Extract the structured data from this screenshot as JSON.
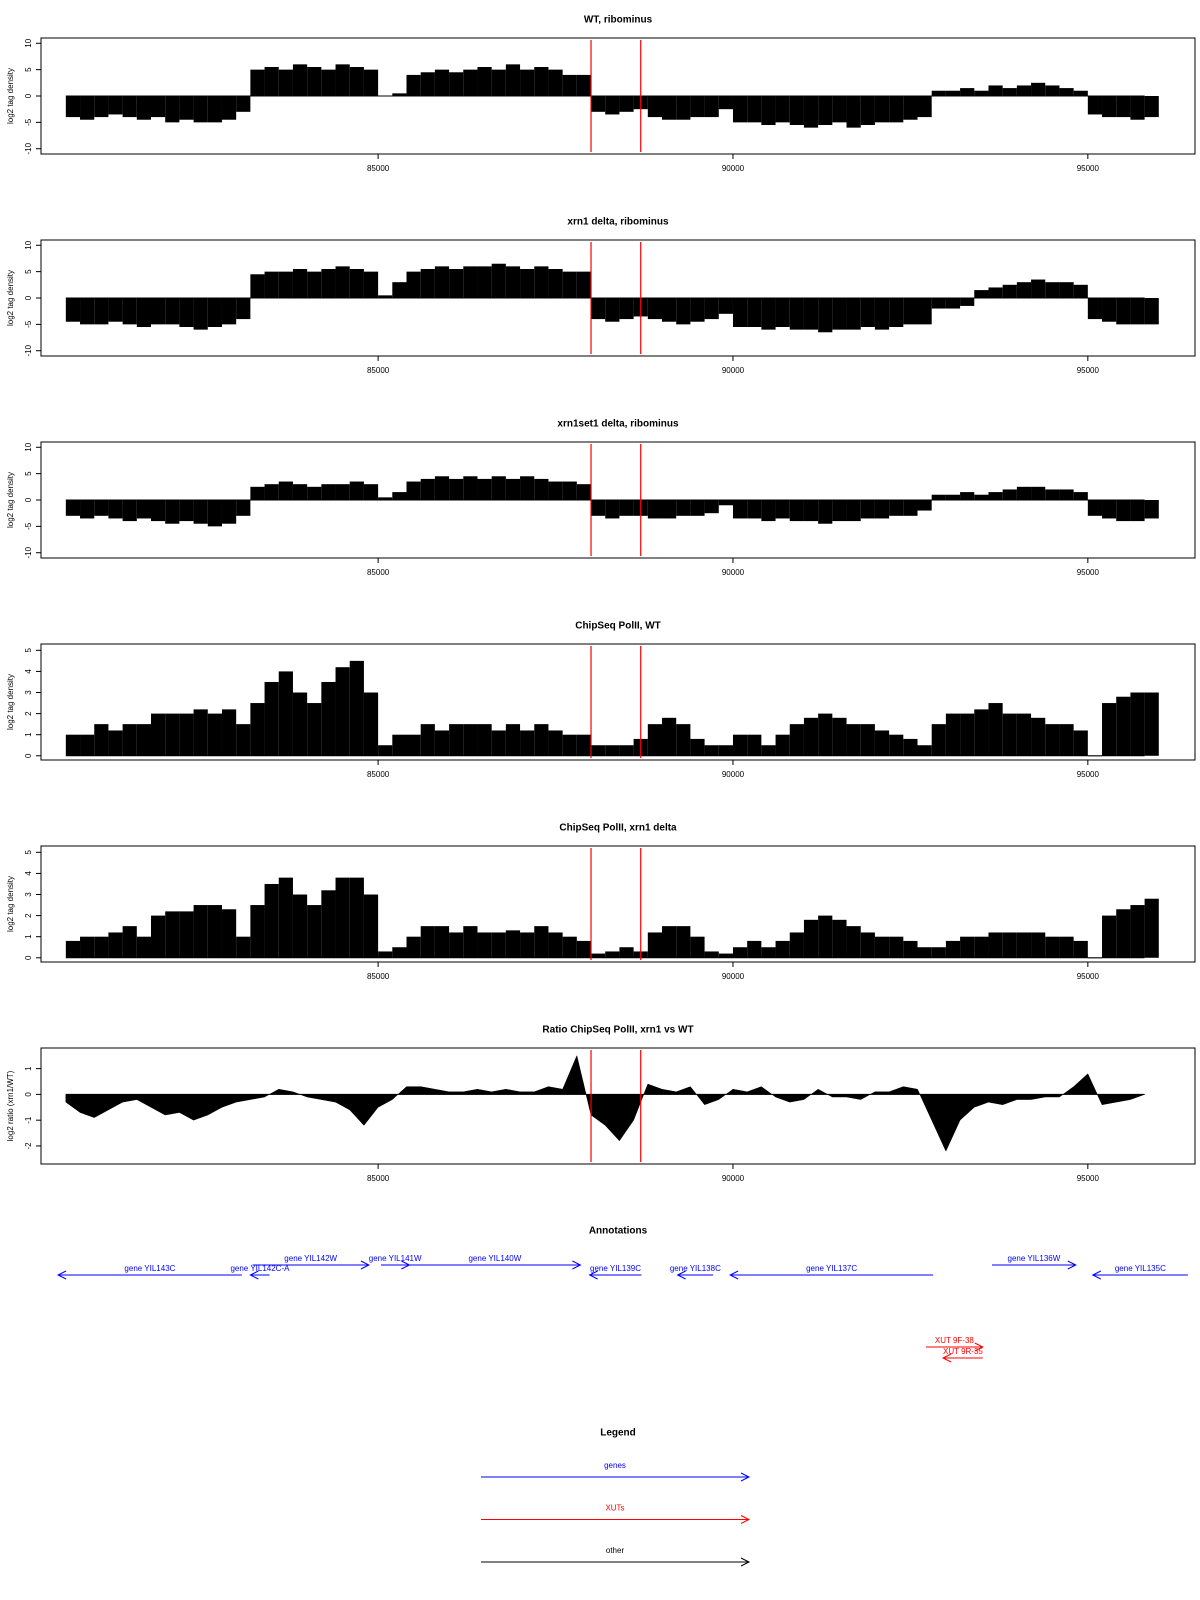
{
  "chart_data": {
    "x": [
      80600,
      80800,
      81000,
      81200,
      81400,
      81600,
      81800,
      82000,
      82200,
      82400,
      82600,
      82800,
      83000,
      83200,
      83400,
      83600,
      83800,
      84000,
      84200,
      84400,
      84600,
      84800,
      85000,
      85200,
      85400,
      85600,
      85800,
      86000,
      86200,
      86400,
      86600,
      86800,
      87000,
      87200,
      87400,
      87600,
      87800,
      88000,
      88200,
      88400,
      88600,
      88800,
      89000,
      89200,
      89400,
      89600,
      89800,
      90000,
      90200,
      90400,
      90600,
      90800,
      91000,
      91200,
      91400,
      91600,
      91800,
      92000,
      92200,
      92400,
      92600,
      92800,
      93000,
      93200,
      93400,
      93600,
      93800,
      94000,
      94200,
      94400,
      94600,
      94800,
      95000,
      95200,
      95400,
      95600,
      95800
    ],
    "xlim": [
      80250,
      96510
    ],
    "xticks": [
      85000,
      90000,
      95000
    ],
    "vlines": [
      88000,
      88700
    ],
    "vline_color": "#ff0000",
    "panels": [
      {
        "type": "bar",
        "title": "WT, ribominus",
        "ylabel": "log2 tag density",
        "color": "#000000",
        "ylim": [
          -11,
          11
        ],
        "yticks": [
          10,
          5,
          0,
          -5,
          -10
        ],
        "values": [
          -4,
          -4.5,
          -4,
          -3.5,
          -4,
          -4.5,
          -4,
          -5,
          -4.5,
          -5,
          -5,
          -4.5,
          -3,
          5,
          5.5,
          5,
          6,
          5.5,
          5,
          6,
          5.5,
          5,
          0,
          0.5,
          4,
          4.5,
          5,
          4.5,
          5,
          5.5,
          5,
          6,
          5,
          5.5,
          5,
          4,
          4,
          -3,
          -3.5,
          -3,
          -2.5,
          -4,
          -4.5,
          -4.5,
          -4,
          -4,
          -2.5,
          -5,
          -5,
          -5.5,
          -5,
          -5.5,
          -6,
          -5.5,
          -5,
          -6,
          -5.5,
          -5,
          -5,
          -4.5,
          -4,
          1,
          1,
          1.5,
          1,
          2,
          1.5,
          2,
          2.5,
          2,
          1.5,
          1,
          -3.5,
          -4,
          -4,
          -4.5,
          -4
        ]
      },
      {
        "type": "bar",
        "title": "xrn1 delta, ribominus",
        "ylabel": "log2 tag density",
        "color": "#000000",
        "ylim": [
          -11,
          11
        ],
        "yticks": [
          10,
          5,
          0,
          -5,
          -10
        ],
        "values": [
          -4.5,
          -5,
          -5,
          -4.5,
          -5,
          -5.5,
          -5,
          -5,
          -5.5,
          -6,
          -5.5,
          -5,
          -4,
          4.5,
          5,
          5,
          5.5,
          5,
          5.5,
          6,
          5.5,
          5,
          0.5,
          3,
          5,
          5.5,
          6,
          5.5,
          6,
          6,
          6.5,
          6,
          5.5,
          6,
          5.5,
          5,
          5,
          -4,
          -4.5,
          -4,
          -3.5,
          -4,
          -4.5,
          -5,
          -4.5,
          -4,
          -3,
          -5.5,
          -5.5,
          -6,
          -5.5,
          -6,
          -6,
          -6.5,
          -6,
          -6,
          -5.5,
          -6,
          -5.5,
          -5,
          -5,
          -2,
          -2,
          -1.5,
          1.5,
          2,
          2.5,
          3,
          3.5,
          3,
          3,
          2.5,
          -4,
          -4.5,
          -5,
          -5,
          -5
        ]
      },
      {
        "type": "bar",
        "title": "xrn1set1 delta, ribominus",
        "ylabel": "log2 tag density",
        "color": "#000000",
        "ylim": [
          -11,
          11
        ],
        "yticks": [
          10,
          5,
          0,
          -5,
          -10
        ],
        "values": [
          -3,
          -3.5,
          -3,
          -3.5,
          -4,
          -3.5,
          -4,
          -4.5,
          -4,
          -4.5,
          -5,
          -4.5,
          -3,
          2.5,
          3,
          3.5,
          3,
          2.5,
          3,
          3,
          3.5,
          3,
          0.5,
          1.5,
          3.5,
          4,
          4.5,
          4,
          4.5,
          4,
          4.5,
          4,
          4.5,
          4,
          3.5,
          3.5,
          3,
          -3,
          -3.5,
          -3,
          -3,
          -3.5,
          -3.5,
          -3,
          -3,
          -2.5,
          -1,
          -3.5,
          -3.5,
          -4,
          -3.5,
          -4,
          -4,
          -4.5,
          -4,
          -4,
          -3.5,
          -3.5,
          -3,
          -3,
          -2,
          1,
          1,
          1.5,
          1,
          1.5,
          2,
          2.5,
          2.5,
          2,
          2,
          1.5,
          -3,
          -3.5,
          -4,
          -4,
          -3.5
        ]
      },
      {
        "type": "bar",
        "title": "ChipSeq PolII, WT",
        "ylabel": "log2 tag density",
        "color": "#000000",
        "ylim": [
          -0.2,
          5.3
        ],
        "yticks": [
          0,
          1,
          2,
          3,
          4,
          5
        ],
        "values": [
          1,
          1,
          1.5,
          1.2,
          1.5,
          1.5,
          2,
          2,
          2,
          2.2,
          2,
          2.2,
          1.5,
          2.5,
          3.5,
          4,
          3,
          2.5,
          3.5,
          4.2,
          4.5,
          3,
          0.5,
          1,
          1,
          1.5,
          1.2,
          1.5,
          1.5,
          1.5,
          1.2,
          1.5,
          1.2,
          1.5,
          1.2,
          1,
          1,
          0.5,
          0.5,
          0.5,
          0.8,
          1.5,
          1.8,
          1.5,
          0.8,
          0.5,
          0.5,
          1,
          1,
          0.5,
          1,
          1.5,
          1.8,
          2,
          1.8,
          1.5,
          1.5,
          1.2,
          1,
          0.8,
          0.5,
          1.5,
          2,
          2,
          2.2,
          2.5,
          2,
          2,
          1.8,
          1.5,
          1.5,
          1.2,
          0,
          2.5,
          2.8,
          3,
          3
        ]
      },
      {
        "type": "bar",
        "title": "ChipSeq PolII, xrn1 delta",
        "ylabel": "log2 tag density",
        "color": "#000000",
        "ylim": [
          -0.2,
          5.3
        ],
        "yticks": [
          0,
          1,
          2,
          3,
          4,
          5
        ],
        "values": [
          0.8,
          1,
          1,
          1.2,
          1.5,
          1,
          2,
          2.2,
          2.2,
          2.5,
          2.5,
          2.3,
          1,
          2.5,
          3.5,
          3.8,
          3,
          2.5,
          3.2,
          3.8,
          3.8,
          3,
          0.3,
          0.5,
          1,
          1.5,
          1.5,
          1.2,
          1.5,
          1.2,
          1.2,
          1.3,
          1.2,
          1.5,
          1.2,
          1,
          0.8,
          0.2,
          0.3,
          0.5,
          0.3,
          1.2,
          1.5,
          1.5,
          1,
          0.3,
          0.2,
          0.5,
          0.8,
          0.5,
          0.8,
          1.2,
          1.8,
          2,
          1.8,
          1.5,
          1.2,
          1,
          1,
          0.8,
          0.5,
          0.5,
          0.8,
          1,
          1,
          1.2,
          1.2,
          1.2,
          1.2,
          1,
          1,
          0.8,
          0,
          2,
          2.3,
          2.5,
          2.8
        ]
      },
      {
        "type": "area",
        "title": "Ratio ChipSeq PolII, xrn1 vs WT",
        "ylabel": "log2 ratio (xrn1/WT)",
        "color": "#000000",
        "ylim": [
          -2.7,
          1.8
        ],
        "yticks": [
          1,
          0,
          -1,
          -2
        ],
        "values": [
          -0.3,
          -0.7,
          -0.9,
          -0.6,
          -0.3,
          -0.2,
          -0.5,
          -0.8,
          -0.7,
          -1,
          -0.8,
          -0.5,
          -0.3,
          -0.2,
          -0.1,
          0.2,
          0.1,
          -0.1,
          -0.2,
          -0.3,
          -0.6,
          -1.2,
          -0.5,
          -0.2,
          0.3,
          0.3,
          0.2,
          0.1,
          0.1,
          0.2,
          0.1,
          0.2,
          0.1,
          0.1,
          0.3,
          0.2,
          1.5,
          -0.8,
          -1.2,
          -1.8,
          -1,
          0.4,
          0.2,
          0.1,
          0.3,
          -0.4,
          -0.2,
          0.2,
          0.1,
          0.3,
          -0.1,
          -0.3,
          -0.2,
          0.2,
          -0.1,
          -0.1,
          -0.2,
          0.1,
          0.1,
          0.3,
          0.2,
          -1,
          -2.2,
          -1,
          -0.5,
          -0.3,
          -0.4,
          -0.2,
          -0.2,
          -0.1,
          -0.1,
          0.3,
          0.8,
          -0.4,
          -0.3,
          -0.2,
          0
        ]
      }
    ]
  },
  "annotations": {
    "title": "Annotations",
    "gene_color": "#0000ff",
    "xut_color": "#ff0000",
    "genes": [
      {
        "label": "gene YIL143C",
        "start": 80490,
        "end": 83080,
        "strand": "-"
      },
      {
        "label": "gene YIL142C-A",
        "start": 83200,
        "end": 83470,
        "strand": "-"
      },
      {
        "label": "gene YIL142W",
        "start": 83230,
        "end": 84870,
        "strand": "+"
      },
      {
        "label": "gene YIL141W",
        "start": 85040,
        "end": 85440,
        "strand": "+"
      },
      {
        "label": "gene YIL140W",
        "start": 85440,
        "end": 87850,
        "strand": "+"
      },
      {
        "label": "gene YIL139C",
        "start": 87980,
        "end": 88710,
        "strand": "-"
      },
      {
        "label": "gene YIL138C",
        "start": 89220,
        "end": 89720,
        "strand": "-"
      },
      {
        "label": "gene YIL137C",
        "start": 89960,
        "end": 92820,
        "strand": "-"
      },
      {
        "label": "gene YIL136W",
        "start": 93650,
        "end": 94830,
        "strand": "+"
      },
      {
        "label": "gene YIL135C",
        "start": 95070,
        "end": 96410,
        "strand": "-"
      }
    ],
    "xuts": [
      {
        "label": "XUT 9F-38",
        "start": 92720,
        "end": 93520,
        "strand": "+"
      },
      {
        "label": "XUT 9R-35",
        "start": 92960,
        "end": 93520,
        "strand": "-"
      }
    ]
  },
  "legend": {
    "title": "Legend",
    "entries": [
      {
        "label": "genes",
        "color": "#0000ff"
      },
      {
        "label": "XUTs",
        "color": "#ff0000"
      },
      {
        "label": "other",
        "color": "#000000"
      }
    ]
  }
}
